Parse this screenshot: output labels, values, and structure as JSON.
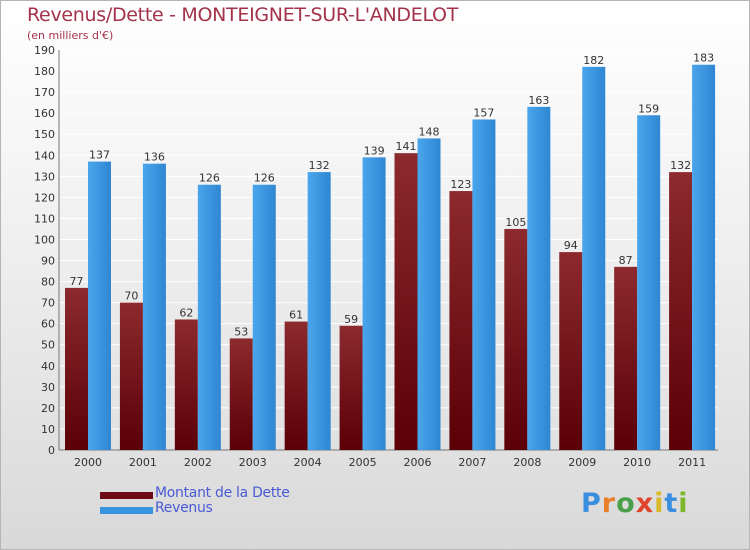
{
  "title": "Revenus/Dette - MONTEIGNET-SUR-L'ANDELOT",
  "subtitle": "(en milliers d'€)",
  "logo_text": "Proxiti",
  "colors": {
    "dette": "#6e0a14",
    "revenus": "#3a95e0",
    "title": "#a3324a",
    "legend_text": "#4a5ad6"
  },
  "chart_data": {
    "type": "bar",
    "categories": [
      "2000",
      "2001",
      "2002",
      "2003",
      "2004",
      "2005",
      "2006",
      "2007",
      "2008",
      "2009",
      "2010",
      "2011"
    ],
    "series": [
      {
        "name": "Montant de la Dette",
        "values": [
          77,
          70,
          62,
          53,
          61,
          59,
          141,
          123,
          105,
          94,
          87,
          132
        ]
      },
      {
        "name": "Revenus",
        "values": [
          137,
          136,
          126,
          126,
          132,
          139,
          148,
          157,
          163,
          182,
          159,
          183
        ]
      }
    ],
    "ylim": [
      0,
      190
    ],
    "yticks": [
      0,
      10,
      20,
      30,
      40,
      50,
      60,
      70,
      80,
      90,
      100,
      110,
      120,
      130,
      140,
      150,
      160,
      170,
      180,
      190
    ],
    "grid": true,
    "legend": "bottom-left"
  }
}
